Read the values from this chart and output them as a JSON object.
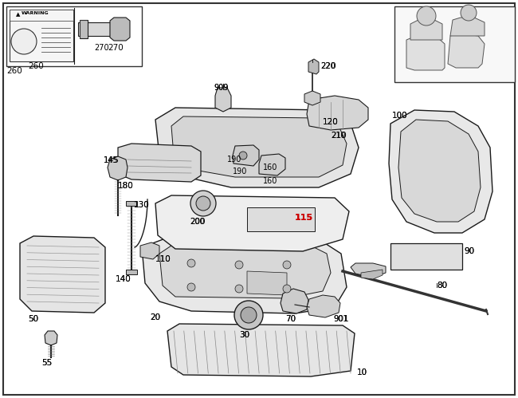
{
  "bg": "#ffffff",
  "lc": "#1a1a1a",
  "red": "#cc0000",
  "fig_w": 6.5,
  "fig_h": 4.99,
  "dpi": 100
}
